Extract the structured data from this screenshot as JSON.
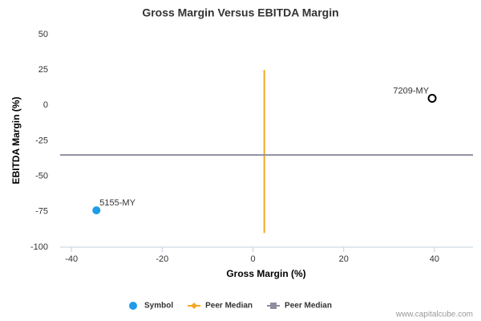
{
  "chart_data": {
    "type": "scatter",
    "title": "Gross Margin Versus EBITDA Margin",
    "x_label": "Gross Margin (%)",
    "y_label": "EBITDA Margin (%)",
    "xlim": [
      -42.5,
      48.5
    ],
    "ylim": [
      -100,
      50
    ],
    "xticks": [
      -40,
      -20,
      0,
      20,
      40
    ],
    "yticks": [
      -100,
      -75,
      -50,
      -25,
      0,
      25,
      50
    ],
    "series": [
      {
        "name": "Symbol",
        "color": "#1e9be9",
        "marker": "dot",
        "x": [
          -34.5
        ],
        "y": [
          -74
        ],
        "point_labels": [
          "5155-MY"
        ]
      },
      {
        "name": "Peer Median",
        "color": "#f5a623",
        "marker": "line",
        "x": [
          2.5,
          2.5
        ],
        "y": [
          -90,
          25
        ]
      },
      {
        "name": "Peer Median",
        "color": "#8e8ea0",
        "marker": "line",
        "x": [
          -42.5,
          48.5
        ],
        "y": [
          -35,
          -35
        ]
      }
    ],
    "highlight": {
      "label": "7209-MY",
      "x": 39.5,
      "y": 5,
      "color": "#000000"
    },
    "source": "www.capitalcube.com"
  }
}
